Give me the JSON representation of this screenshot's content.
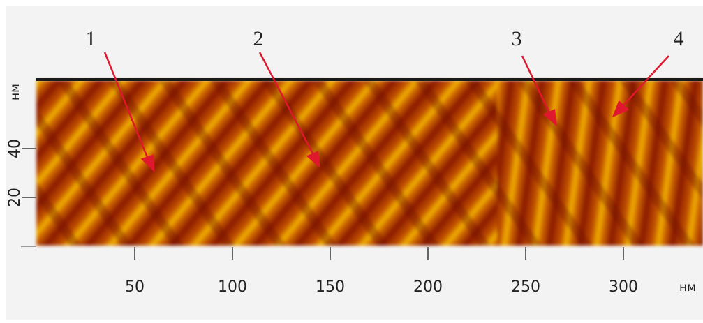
{
  "chart_data": {
    "type": "image",
    "xlim": [
      0,
      341
    ],
    "xticks": [
      50,
      100,
      150,
      200,
      250,
      300
    ],
    "xlabel": "нм",
    "ylim": [
      0,
      68
    ],
    "yticks": [
      20,
      40
    ],
    "ylabel": "нм",
    "annotations": [
      "1",
      "2",
      "3",
      "4"
    ]
  }
}
